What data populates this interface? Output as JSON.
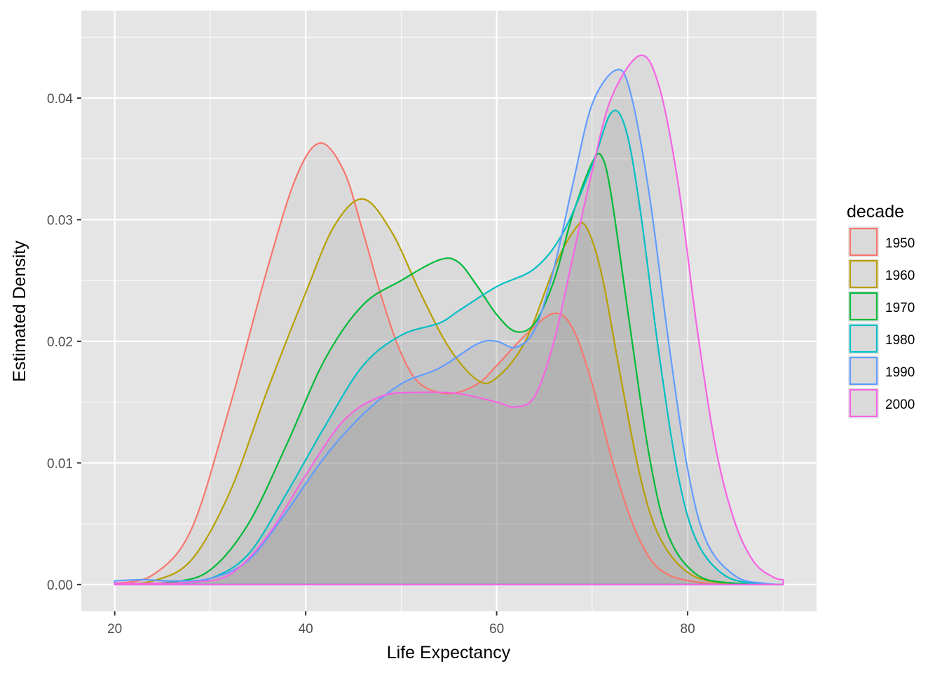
{
  "chart_data": {
    "type": "area",
    "xlabel": "Life Expectancy",
    "ylabel": "Estimated Density",
    "xlim": [
      16.5,
      93.5
    ],
    "ylim": [
      -0.0022,
      0.0472
    ],
    "x_ticks": [
      20,
      40,
      60,
      80
    ],
    "x_tick_labels": [
      "20",
      "40",
      "60",
      "80"
    ],
    "y_ticks": [
      0.0,
      0.01,
      0.02,
      0.03,
      0.04
    ],
    "y_tick_labels": [
      "0.00",
      "0.01",
      "0.02",
      "0.03",
      "0.04"
    ],
    "x_minor_ticks": [
      30,
      50,
      70,
      90
    ],
    "y_minor_ticks": [
      0.005,
      0.015,
      0.025,
      0.035,
      0.045
    ],
    "grid": true,
    "legend": {
      "title": "decade",
      "position": "right"
    },
    "fill_opacity": 0.1,
    "fill_color": "#808080",
    "panel_background": "#e5e5e5",
    "grid_color": "#ffffff",
    "series": [
      {
        "name": "1950",
        "color": "#F8766D",
        "points": [
          [
            20,
            0.0001
          ],
          [
            24,
            0.0008
          ],
          [
            28,
            0.0045
          ],
          [
            32,
            0.0145
          ],
          [
            36,
            0.026
          ],
          [
            39,
            0.0335
          ],
          [
            41.5,
            0.0363
          ],
          [
            44,
            0.034
          ],
          [
            46,
            0.029
          ],
          [
            48,
            0.0235
          ],
          [
            50,
            0.019
          ],
          [
            52,
            0.0165
          ],
          [
            55,
            0.0157
          ],
          [
            58,
            0.0165
          ],
          [
            60,
            0.018
          ],
          [
            63,
            0.0205
          ],
          [
            66,
            0.0223
          ],
          [
            68,
            0.021
          ],
          [
            70,
            0.0165
          ],
          [
            72,
            0.0105
          ],
          [
            74,
            0.0055
          ],
          [
            76,
            0.0022
          ],
          [
            78,
            0.0008
          ],
          [
            81,
            0.0002
          ],
          [
            85,
            0.0
          ],
          [
            90,
            0.0
          ]
        ]
      },
      {
        "name": "1960",
        "color": "#B79F00",
        "points": [
          [
            20,
            0.0
          ],
          [
            24,
            0.0003
          ],
          [
            28,
            0.002
          ],
          [
            32,
            0.0075
          ],
          [
            36,
            0.016
          ],
          [
            40,
            0.024
          ],
          [
            43,
            0.0295
          ],
          [
            46,
            0.0317
          ],
          [
            49,
            0.029
          ],
          [
            52,
            0.024
          ],
          [
            55,
            0.0195
          ],
          [
            58,
            0.0168
          ],
          [
            60,
            0.017
          ],
          [
            63,
            0.02
          ],
          [
            66,
            0.026
          ],
          [
            68,
            0.029
          ],
          [
            69.3,
            0.0295
          ],
          [
            71,
            0.0255
          ],
          [
            73,
            0.017
          ],
          [
            75,
            0.009
          ],
          [
            77,
            0.004
          ],
          [
            80,
            0.001
          ],
          [
            84,
            0.0001
          ],
          [
            90,
            0.0
          ]
        ]
      },
      {
        "name": "1970",
        "color": "#00BA38",
        "points": [
          [
            20,
            0.0
          ],
          [
            26,
            0.0002
          ],
          [
            30,
            0.0012
          ],
          [
            34,
            0.005
          ],
          [
            38,
            0.0115
          ],
          [
            42,
            0.0185
          ],
          [
            46,
            0.023
          ],
          [
            50,
            0.025
          ],
          [
            54,
            0.0267
          ],
          [
            56,
            0.0265
          ],
          [
            58,
            0.0245
          ],
          [
            60,
            0.0222
          ],
          [
            62,
            0.0208
          ],
          [
            64,
            0.0215
          ],
          [
            66,
            0.025
          ],
          [
            68,
            0.0305
          ],
          [
            70,
            0.0347
          ],
          [
            71,
            0.0352
          ],
          [
            72,
            0.032
          ],
          [
            74,
            0.021
          ],
          [
            76,
            0.0105
          ],
          [
            78,
            0.004
          ],
          [
            81,
            0.0008
          ],
          [
            85,
            0.0001
          ],
          [
            90,
            0.0
          ]
        ]
      },
      {
        "name": "1980",
        "color": "#00BFC4",
        "points": [
          [
            20,
            0.0
          ],
          [
            26,
            0.0001
          ],
          [
            30,
            0.0005
          ],
          [
            34,
            0.0025
          ],
          [
            38,
            0.0075
          ],
          [
            42,
            0.013
          ],
          [
            46,
            0.018
          ],
          [
            50,
            0.0205
          ],
          [
            54,
            0.0215
          ],
          [
            56,
            0.0225
          ],
          [
            60,
            0.0245
          ],
          [
            64,
            0.026
          ],
          [
            67,
            0.029
          ],
          [
            70,
            0.0345
          ],
          [
            72,
            0.0388
          ],
          [
            73.5,
            0.0375
          ],
          [
            75,
            0.031
          ],
          [
            77,
            0.019
          ],
          [
            79,
            0.009
          ],
          [
            81,
            0.0035
          ],
          [
            84,
            0.0007
          ],
          [
            88,
            0.0
          ],
          [
            90,
            0.0
          ]
        ]
      },
      {
        "name": "1990",
        "color": "#619CFF",
        "points": [
          [
            20,
            0.0003
          ],
          [
            23,
            0.0004
          ],
          [
            26,
            0.0003
          ],
          [
            30,
            0.0005
          ],
          [
            34,
            0.002
          ],
          [
            38,
            0.006
          ],
          [
            42,
            0.0105
          ],
          [
            46,
            0.014
          ],
          [
            50,
            0.0165
          ],
          [
            54,
            0.0178
          ],
          [
            58,
            0.0198
          ],
          [
            60,
            0.02
          ],
          [
            62,
            0.0195
          ],
          [
            64,
            0.021
          ],
          [
            66,
            0.026
          ],
          [
            68,
            0.033
          ],
          [
            70,
            0.0395
          ],
          [
            72.5,
            0.0423
          ],
          [
            74,
            0.0405
          ],
          [
            76,
            0.032
          ],
          [
            78,
            0.02
          ],
          [
            80,
            0.0095
          ],
          [
            82,
            0.0035
          ],
          [
            85,
            0.0007
          ],
          [
            88,
            0.0001
          ],
          [
            90,
            0.0
          ]
        ]
      },
      {
        "name": "2000",
        "color": "#F564E3",
        "points": [
          [
            20,
            0.0001
          ],
          [
            24,
            0.0001
          ],
          [
            28,
            0.0002
          ],
          [
            32,
            0.0008
          ],
          [
            36,
            0.004
          ],
          [
            40,
            0.009
          ],
          [
            44,
            0.0135
          ],
          [
            48,
            0.0155
          ],
          [
            52,
            0.0158
          ],
          [
            56,
            0.0157
          ],
          [
            60,
            0.015
          ],
          [
            62,
            0.0146
          ],
          [
            64,
            0.0155
          ],
          [
            66,
            0.02
          ],
          [
            68,
            0.027
          ],
          [
            70,
            0.034
          ],
          [
            72,
            0.04
          ],
          [
            75,
            0.0435
          ],
          [
            77,
            0.041
          ],
          [
            79,
            0.033
          ],
          [
            81,
            0.021
          ],
          [
            83,
            0.011
          ],
          [
            85,
            0.005
          ],
          [
            87,
            0.0018
          ],
          [
            89,
            0.0006
          ],
          [
            90,
            0.0004
          ]
        ]
      }
    ]
  }
}
